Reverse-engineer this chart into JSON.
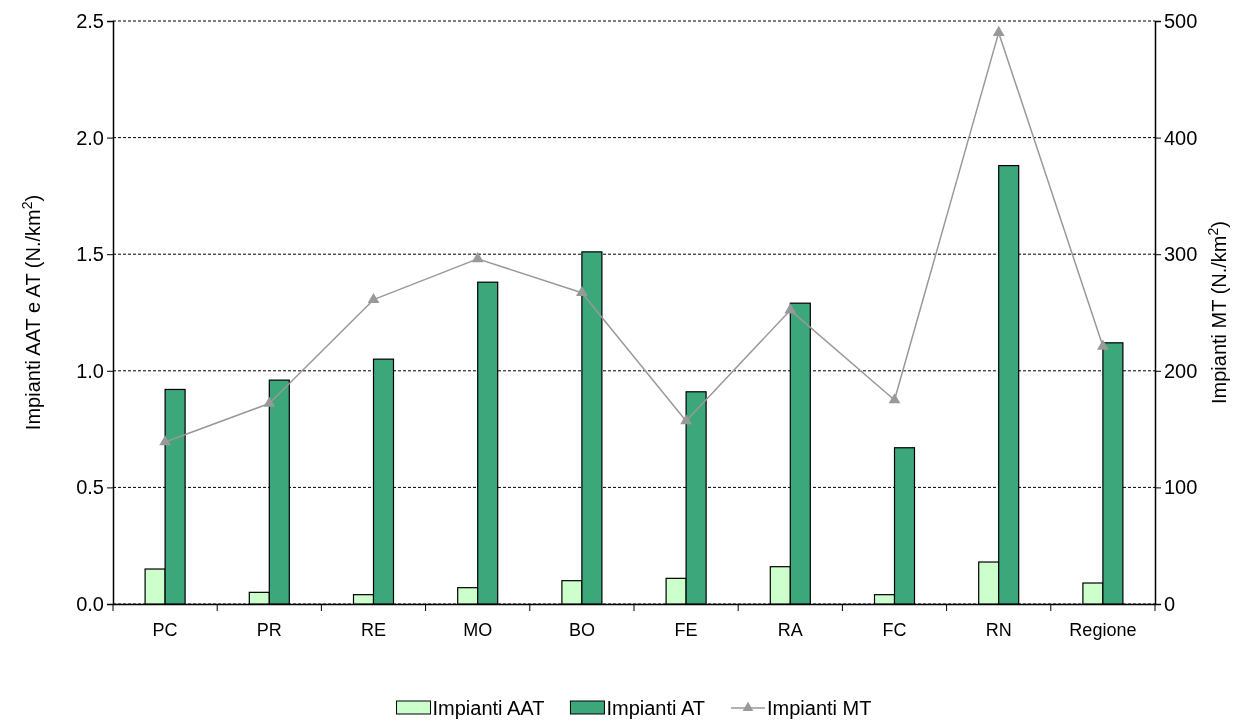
{
  "chart_data": {
    "type": "bar",
    "categories": [
      "PC",
      "PR",
      "RE",
      "MO",
      "BO",
      "FE",
      "RA",
      "FC",
      "RN",
      "Regione"
    ],
    "ylabel": "Impianti AAT e AT (N./km$^{2}$)",
    "y2label": "Impianti MT (N./km$^{2}$)",
    "ylim": [
      0,
      2.5
    ],
    "yticks": [
      {
        "value": 0,
        "label": "0.0"
      },
      {
        "value": 0.5,
        "label": "0.5"
      },
      {
        "value": 1,
        "label": "1.0"
      },
      {
        "value": 1.5,
        "label": "1.5"
      },
      {
        "value": 2,
        "label": "2.0"
      },
      {
        "value": 2.5,
        "label": "2.5"
      }
    ],
    "y2lim": [
      0,
      500
    ],
    "y2ticks": [
      0,
      100,
      200,
      300,
      400,
      500
    ],
    "grid": "y",
    "legend": "bottom",
    "series": [
      {
        "name": "Impianti AAT",
        "color": "#ccffcc",
        "values": [
          0.15,
          0.05,
          0.04,
          0.07,
          0.1,
          0.11,
          0.16,
          0.04,
          0.18,
          0.09
        ]
      },
      {
        "name": "Impianti AT",
        "color": "#3ca77a",
        "values": [
          0.92,
          0.96,
          1.05,
          1.38,
          1.51,
          0.91,
          1.29,
          0.67,
          1.88,
          1.12
        ]
      },
      {
        "name": "Impianti MT",
        "type": "line",
        "axis": "y2",
        "color": "#999999",
        "marker": "triangle",
        "values": [
          139,
          172,
          261,
          296,
          267,
          157,
          252,
          175,
          490,
          221
        ]
      }
    ]
  }
}
